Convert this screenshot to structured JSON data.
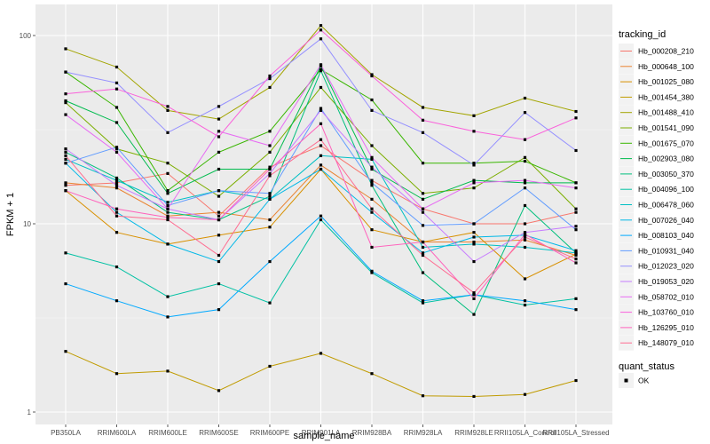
{
  "chart_data": {
    "type": "line",
    "title": "",
    "xlabel": "sample_name",
    "ylabel": "FPKM + 1",
    "y_scale": "log10",
    "ylim": [
      1,
      130
    ],
    "yticks": [
      1,
      10,
      100
    ],
    "ytick_labels": [
      "1",
      "10",
      "100"
    ],
    "grid": true,
    "categories": [
      "PB350LA",
      "RRIM600LA",
      "RRIM600LE",
      "RRIM600SE",
      "RRIM600PE",
      "RRIM901LA",
      "RRIM928BA",
      "RRIM928LA",
      "RRIM928LE",
      "RRII105LA_Control",
      "RRII105LA_Stressed"
    ],
    "legend": {
      "placement": "right",
      "color_title": "tracking_id",
      "shape_title": "quant_status",
      "shape_entries": [
        "OK"
      ]
    },
    "series": [
      {
        "name": "Hb_000208_210",
        "color": "#F8766D",
        "values": [
          16.0,
          16.5,
          18.5,
          11.0,
          20.0,
          26.0,
          17.0,
          12.0,
          10.0,
          10.0,
          11.5
        ]
      },
      {
        "name": "Hb_000648_100",
        "color": "#EA8331",
        "values": [
          16.5,
          15.5,
          11.0,
          11.5,
          10.5,
          20.5,
          13.5,
          8.0,
          8.0,
          8.2,
          6.8
        ]
      },
      {
        "name": "Hb_001025_080",
        "color": "#D89000",
        "values": [
          15.0,
          9.0,
          7.8,
          8.7,
          9.6,
          19.5,
          9.3,
          8.0,
          9.0,
          5.1,
          6.9
        ]
      },
      {
        "name": "Hb_001454_380",
        "color": "#C09B00",
        "values": [
          2.1,
          1.6,
          1.65,
          1.3,
          1.75,
          2.05,
          1.6,
          1.22,
          1.21,
          1.24,
          1.47
        ]
      },
      {
        "name": "Hb_001488_410",
        "color": "#A3A500",
        "values": [
          85.0,
          68.0,
          40.0,
          36.0,
          53.0,
          113.0,
          62.0,
          41.5,
          37.5,
          46.5,
          39.5
        ]
      },
      {
        "name": "Hb_001541_090",
        "color": "#7CAE00",
        "values": [
          44.0,
          25.0,
          21.0,
          14.0,
          24.0,
          53.0,
          26.0,
          14.5,
          15.5,
          22.5,
          12.0
        ]
      },
      {
        "name": "Hb_001675_070",
        "color": "#39B600",
        "values": [
          64.0,
          41.5,
          15.0,
          24.0,
          31.0,
          66.0,
          45.5,
          21.0,
          21.0,
          21.5,
          16.5
        ]
      },
      {
        "name": "Hb_002903_080",
        "color": "#00BB4E",
        "values": [
          45.0,
          34.5,
          14.5,
          19.5,
          19.5,
          69.0,
          19.5,
          13.5,
          17.0,
          16.5,
          16.5
        ]
      },
      {
        "name": "Hb_003050_370",
        "color": "#00BF7D",
        "values": [
          24.0,
          17.5,
          11.5,
          10.5,
          14.0,
          65.0,
          16.0,
          5.5,
          3.3,
          12.5,
          7.0
        ]
      },
      {
        "name": "Hb_004096_100",
        "color": "#00C1A3",
        "values": [
          7.0,
          5.9,
          4.1,
          4.8,
          3.8,
          10.5,
          5.5,
          3.8,
          4.2,
          3.7,
          4.0
        ]
      },
      {
        "name": "Hb_006478_060",
        "color": "#00BFC4",
        "values": [
          22.0,
          17.0,
          13.0,
          15.0,
          13.5,
          23.0,
          22.0,
          7.5,
          7.8,
          7.5,
          7.0
        ]
      },
      {
        "name": "Hb_007026_040",
        "color": "#00B8E7",
        "values": [
          21.0,
          11.5,
          7.8,
          6.3,
          13.5,
          19.5,
          11.5,
          7.0,
          8.5,
          8.7,
          7.2
        ]
      },
      {
        "name": "Hb_008103_040",
        "color": "#00A9FF",
        "values": [
          4.8,
          3.9,
          3.2,
          3.5,
          6.3,
          11.0,
          5.6,
          3.9,
          4.2,
          3.9,
          3.5
        ]
      },
      {
        "name": "Hb_010931_040",
        "color": "#619CFF",
        "values": [
          21.0,
          25.5,
          12.5,
          15.0,
          14.5,
          41.0,
          16.5,
          9.8,
          10.0,
          15.5,
          9.3
        ]
      },
      {
        "name": "Hb_012023_020",
        "color": "#9590FF",
        "values": [
          64.0,
          56.0,
          30.5,
          42.0,
          59.0,
          96.0,
          40.0,
          30.5,
          20.5,
          39.0,
          24.5
        ]
      },
      {
        "name": "Hb_019053_020",
        "color": "#C77CFF",
        "values": [
          25.0,
          16.0,
          12.0,
          10.5,
          18.5,
          40.0,
          20.0,
          11.5,
          6.3,
          9.0,
          9.7
        ]
      },
      {
        "name": "Hb_058702_010",
        "color": "#E76BF3",
        "values": [
          38.0,
          24.0,
          12.0,
          31.0,
          26.0,
          70.0,
          22.5,
          12.0,
          16.5,
          17.0,
          15.5
        ]
      },
      {
        "name": "Hb_103760_010",
        "color": "#FA62DB",
        "values": [
          49.0,
          52.0,
          42.0,
          29.0,
          61.0,
          107.0,
          61.0,
          35.5,
          31.0,
          28.0,
          36.5
        ]
      },
      {
        "name": "Hb_126295_010",
        "color": "#FF62BC",
        "values": [
          15.0,
          12.0,
          10.8,
          10.5,
          19.5,
          34.0,
          7.5,
          8.0,
          4.0,
          8.8,
          6.2
        ]
      },
      {
        "name": "Hb_148079_010",
        "color": "#FF6C91",
        "values": [
          23.0,
          11.0,
          10.5,
          6.8,
          18.0,
          28.0,
          12.0,
          6.8,
          4.3,
          8.5,
          6.5
        ]
      }
    ]
  }
}
